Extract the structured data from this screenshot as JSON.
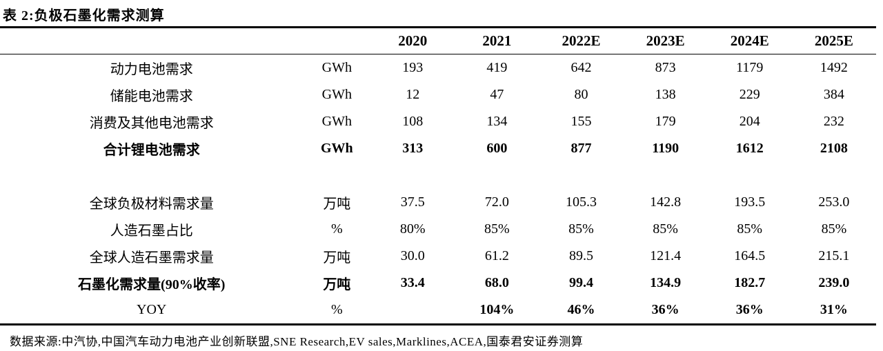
{
  "caption": "表 2:负极石墨化需求测算",
  "chart_data": {
    "type": "table",
    "title": "表 2:负极石墨化需求测算",
    "years": [
      "2020",
      "2021",
      "2022E",
      "2023E",
      "2024E",
      "2025E"
    ],
    "rows": [
      {
        "label": "动力电池需求",
        "unit": "GWh",
        "emphasis": false,
        "values": [
          "193",
          "419",
          "642",
          "873",
          "1179",
          "1492"
        ]
      },
      {
        "label": "储能电池需求",
        "unit": "GWh",
        "emphasis": false,
        "values": [
          "12",
          "47",
          "80",
          "138",
          "229",
          "384"
        ]
      },
      {
        "label": "消费及其他电池需求",
        "unit": "GWh",
        "emphasis": false,
        "values": [
          "108",
          "134",
          "155",
          "179",
          "204",
          "232"
        ]
      },
      {
        "label": "合计锂电池需求",
        "unit": "GWh",
        "emphasis": true,
        "values": [
          "313",
          "600",
          "877",
          "1190",
          "1612",
          "2108"
        ]
      },
      {
        "label": "全球负极材料需求量",
        "unit": "万吨",
        "emphasis": false,
        "values": [
          "37.5",
          "72.0",
          "105.3",
          "142.8",
          "193.5",
          "253.0"
        ]
      },
      {
        "label": "人造石墨占比",
        "unit": "%",
        "emphasis": false,
        "values": [
          "80%",
          "85%",
          "85%",
          "85%",
          "85%",
          "85%"
        ]
      },
      {
        "label": "全球人造石墨需求量",
        "unit": "万吨",
        "emphasis": false,
        "values": [
          "30.0",
          "61.2",
          "89.5",
          "121.4",
          "164.5",
          "215.1"
        ]
      },
      {
        "label": "石墨化需求量(90%收率)",
        "unit": "万吨",
        "emphasis": true,
        "values": [
          "33.4",
          "68.0",
          "99.4",
          "134.9",
          "182.7",
          "239.0"
        ]
      },
      {
        "label": "YOY",
        "unit": "%",
        "emphasis": "values-only",
        "values": [
          "",
          "104%",
          "46%",
          "36%",
          "36%",
          "31%"
        ]
      }
    ],
    "source": "数据来源:中汽协,中国汽车动力电池产业创新联盟,SNE Research,EV sales,Marklines,ACEA,国泰君安证券测算"
  }
}
